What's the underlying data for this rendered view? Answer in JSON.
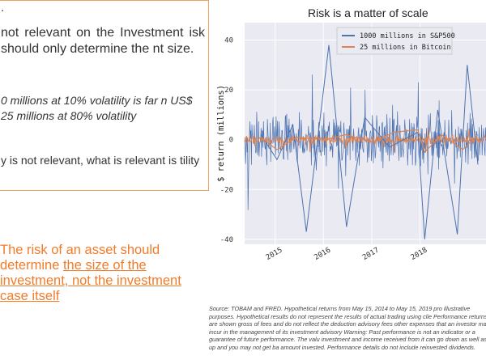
{
  "box": {
    "line1": ".",
    "line2": "not relevant on the Investment isk should only determine the nt size.",
    "line3": "0 millions at 10% volatility is far n US$ 25 millions at 80% volatility",
    "line4": "y is not relevant, what is relevant is tility"
  },
  "claim": {
    "plain": "The risk of an asset should determine ",
    "underlined": "the size of the investment, not the investment case itself"
  },
  "chart_data": {
    "type": "line",
    "title": "Risk is a matter of scale",
    "ylabel": "$ return (millions)",
    "xlabel": "",
    "ylim": [
      -42,
      47
    ],
    "yticks": [
      40,
      20,
      0,
      -20,
      -40
    ],
    "xticks": [
      "2015",
      "2016",
      "2017",
      "2018"
    ],
    "xrange": [
      "2014-05-15",
      "2019-05-15"
    ],
    "grid": true,
    "legend_position": "top-right",
    "series": [
      {
        "name": "1000 millions in S&P500",
        "color": "#4c72b0",
        "x": [
          "2014-09-15",
          "2015-01-15",
          "2015-05-15",
          "2015-08-25",
          "2015-12-15",
          "2016-02-11",
          "2016-06-24",
          "2016-11-09",
          "2017-05-15",
          "2017-12-15",
          "2018-02-05",
          "2018-05-15",
          "2018-10-10",
          "2018-12-24",
          "2019-03-15"
        ],
        "values": [
          2,
          -8,
          6,
          -37,
          12,
          38,
          -35,
          9,
          -3,
          3,
          -40,
          12,
          -38,
          30,
          -10
        ]
      },
      {
        "name": "25 millions in Bitcoin",
        "color": "#dd8452",
        "x": [
          "2014-09-15",
          "2015-01-14",
          "2015-06-15",
          "2016-01-15",
          "2016-06-15",
          "2017-01-15",
          "2017-06-15",
          "2017-12-15",
          "2018-02-05",
          "2018-06-15",
          "2018-11-20",
          "2019-03-15"
        ],
        "values": [
          1,
          -4,
          1,
          0,
          2,
          -1,
          3,
          4,
          -5,
          2,
          -4,
          2
        ]
      }
    ]
  },
  "source_text": "Source: TOBAM and FRED. Hypothetical returns from May 15, 2014 to May 15, 2019 pro illustrative purposes. Hypothetical results do not represent the results of actual trading using clie Performance returns are shown gross of fees and do not reflect the deduction advisory fees other expenses that an investor may incur in the management of its investment advisory Warning: Past performance is not an indicator or a guarantee of future performance. The valu investment and income received from it can go down as well as up and you may not get ba amount invested. Performance details do not include reinvested dividends."
}
